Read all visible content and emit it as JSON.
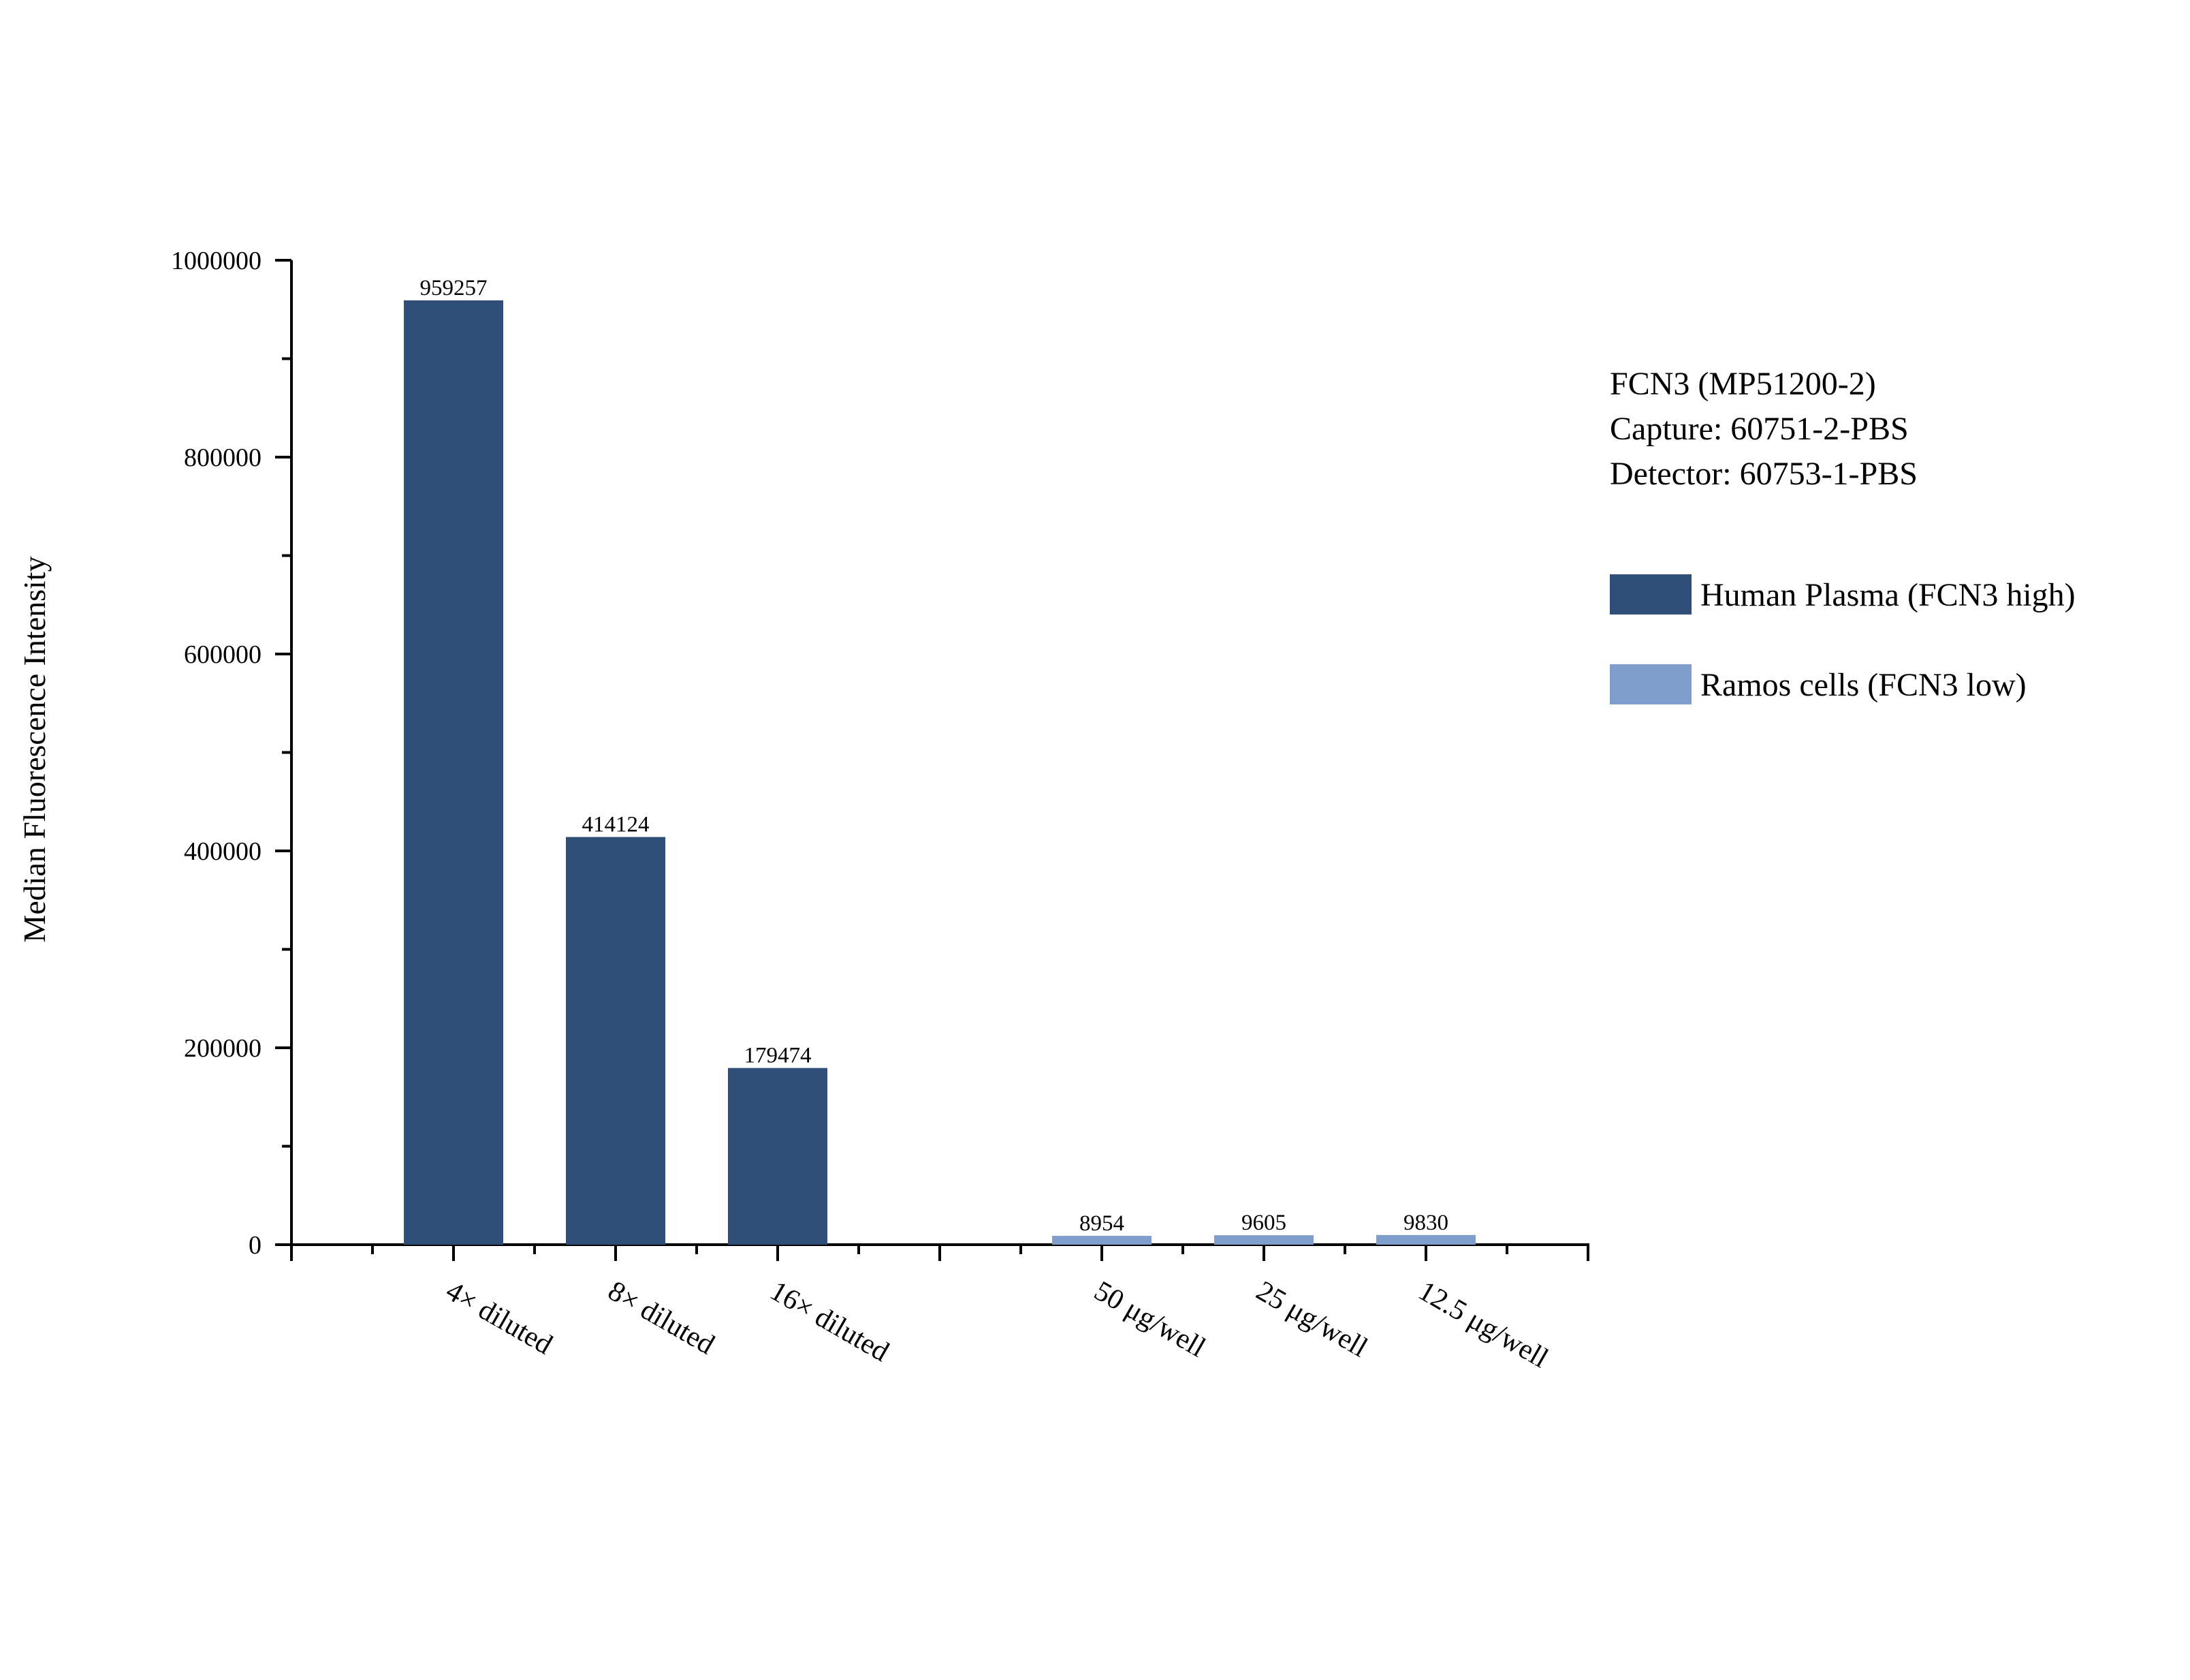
{
  "chart_data": {
    "type": "bar",
    "categories": [
      "4× diluted",
      "8× diluted",
      "16× diluted",
      "",
      "50 μg/well",
      "25 μg/well",
      "12.5 μg/well"
    ],
    "series": [
      {
        "name": "Human Plasma (FCN3 high)",
        "color": "#2f4f79",
        "values": [
          959257,
          414124,
          179474,
          null,
          null,
          null,
          null
        ]
      },
      {
        "name": "Ramos cells (FCN3 low)",
        "color": "#7f9ecb",
        "values": [
          null,
          null,
          null,
          null,
          8954,
          9605,
          9830
        ]
      }
    ],
    "ylabel": "Median Fluorescence Intensity",
    "xlabel": "",
    "ylim": [
      0,
      1000000
    ],
    "yticks": [
      0,
      200000,
      400000,
      600000,
      800000,
      1000000
    ],
    "ytick_labels": [
      "0",
      "200000",
      "400000",
      "600000",
      "800000",
      "1000000"
    ],
    "data_labels": [
      "959257",
      "414124",
      "179474",
      "8954",
      "9605",
      "9830"
    ],
    "grid": false,
    "legend_position": "right",
    "annotations": [
      "FCN3 (MP51200-2)",
      "Capture: 60751-2-PBS",
      "Detector: 60753-1-PBS"
    ]
  }
}
